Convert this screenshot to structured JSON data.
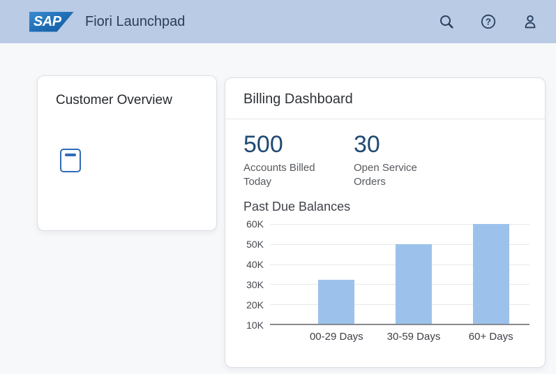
{
  "header": {
    "logo": "SAP",
    "title": "Fiori Launchpad",
    "icons": [
      "search-icon",
      "help-icon",
      "profile-icon"
    ]
  },
  "customer_tile": {
    "title": "Customer Overview",
    "icon": "document-icon"
  },
  "billing_card": {
    "title": "Billing Dashboard",
    "kpis": [
      {
        "value": "500",
        "label": "Accounts Billed Today"
      },
      {
        "value": "30",
        "label": "Open Service Orders"
      }
    ]
  },
  "chart_data": {
    "type": "bar",
    "title": "Past Due Balances",
    "categories": [
      "00-29 Days",
      "30-59 Days",
      "60+ Days"
    ],
    "values": [
      32000,
      50000,
      60000
    ],
    "ylim": [
      10000,
      60000
    ],
    "yticks": [
      "60K",
      "50K",
      "40K",
      "30K",
      "20K",
      "10K"
    ],
    "grid": true,
    "legend_position": "none",
    "bar_color": "#9cc2ec",
    "xlabel": "",
    "ylabel": ""
  },
  "colors": {
    "header_bg": "#b9cbe5",
    "header_text": "#2e3c58",
    "icon_color": "#2a4060",
    "logo_blue": "#1e6cb4",
    "accent_blue": "#2e6cb5",
    "kpi_number": "#1f4a73",
    "bar_fill": "#9cc2ec",
    "page_bg": "#f7f8fa",
    "baseline": "#87898d"
  }
}
